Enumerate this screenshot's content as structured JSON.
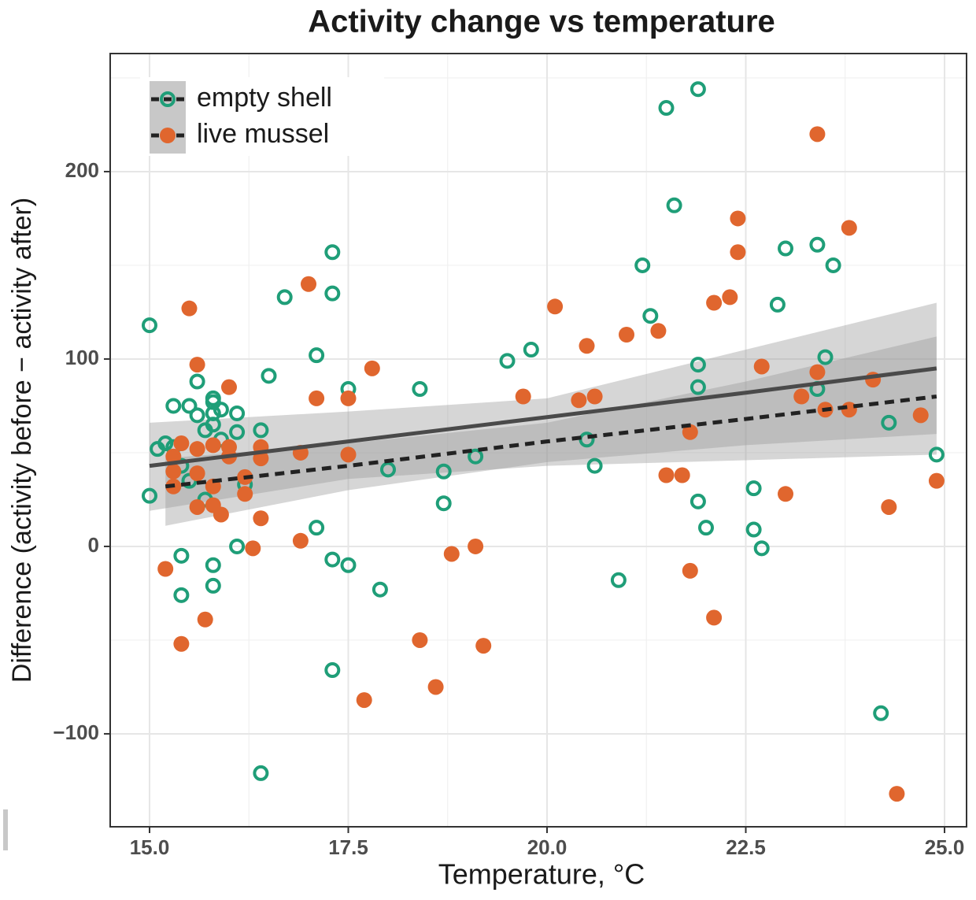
{
  "chart_data": {
    "type": "scatter",
    "title": "Activity change vs temperature",
    "x_label": "Temperature, °C",
    "y_label": "Difference (activity before − activity after)",
    "xlim": [
      14.505,
      25.277
    ],
    "ylim": [
      -149.6,
      263
    ],
    "xticks": [
      {
        "value": 15,
        "label": "15.0"
      },
      {
        "value": 17.5,
        "label": "17.5"
      },
      {
        "value": 20,
        "label": "20.0"
      },
      {
        "value": 22.5,
        "label": "22.5"
      },
      {
        "value": 25,
        "label": "25.0"
      }
    ],
    "yticks": [
      {
        "value": -100,
        "label": "−100"
      },
      0,
      100,
      200
    ],
    "grid": true,
    "minor_grid": true,
    "legend_position": "top-left",
    "series": [
      {
        "name": "empty shell",
        "color": "#1f9e78",
        "marker": "hollow",
        "x": [
          15.0,
          15.0,
          15.1,
          15.2,
          15.3,
          15.3,
          15.4,
          15.4,
          15.4,
          15.5,
          15.5,
          15.6,
          15.6,
          15.7,
          15.7,
          15.8,
          15.8,
          15.8,
          15.8,
          15.8,
          15.8,
          15.9,
          15.9,
          16.1,
          16.1,
          16.1,
          16.2,
          16.4,
          16.4,
          16.5,
          16.7,
          17.1,
          17.1,
          17.3,
          17.3,
          17.3,
          17.3,
          17.5,
          17.5,
          17.9,
          18.0,
          18.4,
          18.7,
          18.7,
          19.1,
          19.5,
          19.8,
          20.5,
          20.6,
          20.9,
          21.2,
          21.3,
          21.5,
          21.6,
          21.9,
          21.9,
          21.9,
          21.9,
          22.0,
          22.6,
          22.6,
          22.7,
          22.9,
          23.0,
          23.4,
          23.4,
          23.5,
          23.6,
          24.2,
          24.3,
          24.9
        ],
        "values": [
          118,
          27,
          52,
          55,
          75,
          53,
          43,
          -5,
          -26,
          75,
          35,
          70,
          88,
          62,
          25,
          79,
          77,
          65,
          71,
          -10,
          -21,
          73,
          57,
          71,
          61,
          0,
          33,
          62,
          -121,
          91,
          133,
          102,
          10,
          157,
          135,
          -7,
          -66,
          84,
          -10,
          -23,
          41,
          84,
          40,
          23,
          48,
          99,
          105,
          57,
          43,
          -18,
          150,
          123,
          234,
          182,
          244,
          97,
          85,
          24,
          10,
          31,
          9,
          -1,
          129,
          159,
          161,
          84,
          101,
          150,
          -89,
          66,
          49
        ],
        "fit": {
          "linetype": "solid",
          "x": [
            15,
            17.5,
            20,
            22.5,
            24.9
          ],
          "y": [
            43,
            56,
            69,
            82,
            95
          ],
          "lower": [
            19,
            36,
            43,
            46,
            49
          ],
          "upper": [
            66,
            72,
            79,
            105,
            130
          ]
        }
      },
      {
        "name": "live mussel",
        "color": "#e0662e",
        "marker": "filled",
        "x": [
          15.2,
          15.3,
          15.3,
          15.3,
          15.4,
          15.4,
          15.5,
          15.6,
          15.6,
          15.6,
          15.6,
          15.7,
          15.8,
          15.8,
          15.8,
          15.9,
          16.0,
          16.0,
          16.0,
          16.2,
          16.2,
          16.3,
          16.4,
          16.4,
          16.4,
          16.9,
          16.9,
          17.0,
          17.1,
          17.5,
          17.5,
          17.7,
          17.8,
          18.4,
          18.6,
          18.8,
          19.1,
          19.2,
          19.7,
          20.1,
          20.4,
          20.5,
          20.6,
          21.0,
          21.4,
          21.5,
          21.7,
          21.8,
          21.8,
          22.1,
          22.1,
          22.3,
          22.4,
          22.4,
          22.7,
          23.0,
          23.2,
          23.4,
          23.4,
          23.5,
          23.8,
          23.8,
          24.1,
          24.3,
          24.4,
          24.7,
          24.9
        ],
        "values": [
          -12,
          48,
          40,
          32,
          55,
          -52,
          127,
          97,
          52,
          39,
          21,
          -39,
          54,
          32,
          22,
          17,
          85,
          53,
          48,
          37,
          28,
          -1,
          53,
          47,
          15,
          50,
          3,
          140,
          79,
          79,
          49,
          -82,
          95,
          -50,
          -75,
          -4,
          0,
          -53,
          80,
          128,
          78,
          107,
          80,
          113,
          115,
          38,
          38,
          61,
          -13,
          130,
          -38,
          133,
          175,
          157,
          96,
          28,
          80,
          220,
          93,
          73,
          170,
          73,
          89,
          21,
          -132,
          70,
          35
        ],
        "fit": {
          "linetype": "dashed",
          "x": [
            15.2,
            17.5,
            20,
            22.5,
            24.9
          ],
          "y": [
            32,
            43,
            56,
            68,
            80
          ],
          "lower": [
            11,
            30,
            45,
            54,
            60
          ],
          "upper": [
            47,
            55,
            66,
            88,
            112
          ]
        }
      }
    ]
  }
}
